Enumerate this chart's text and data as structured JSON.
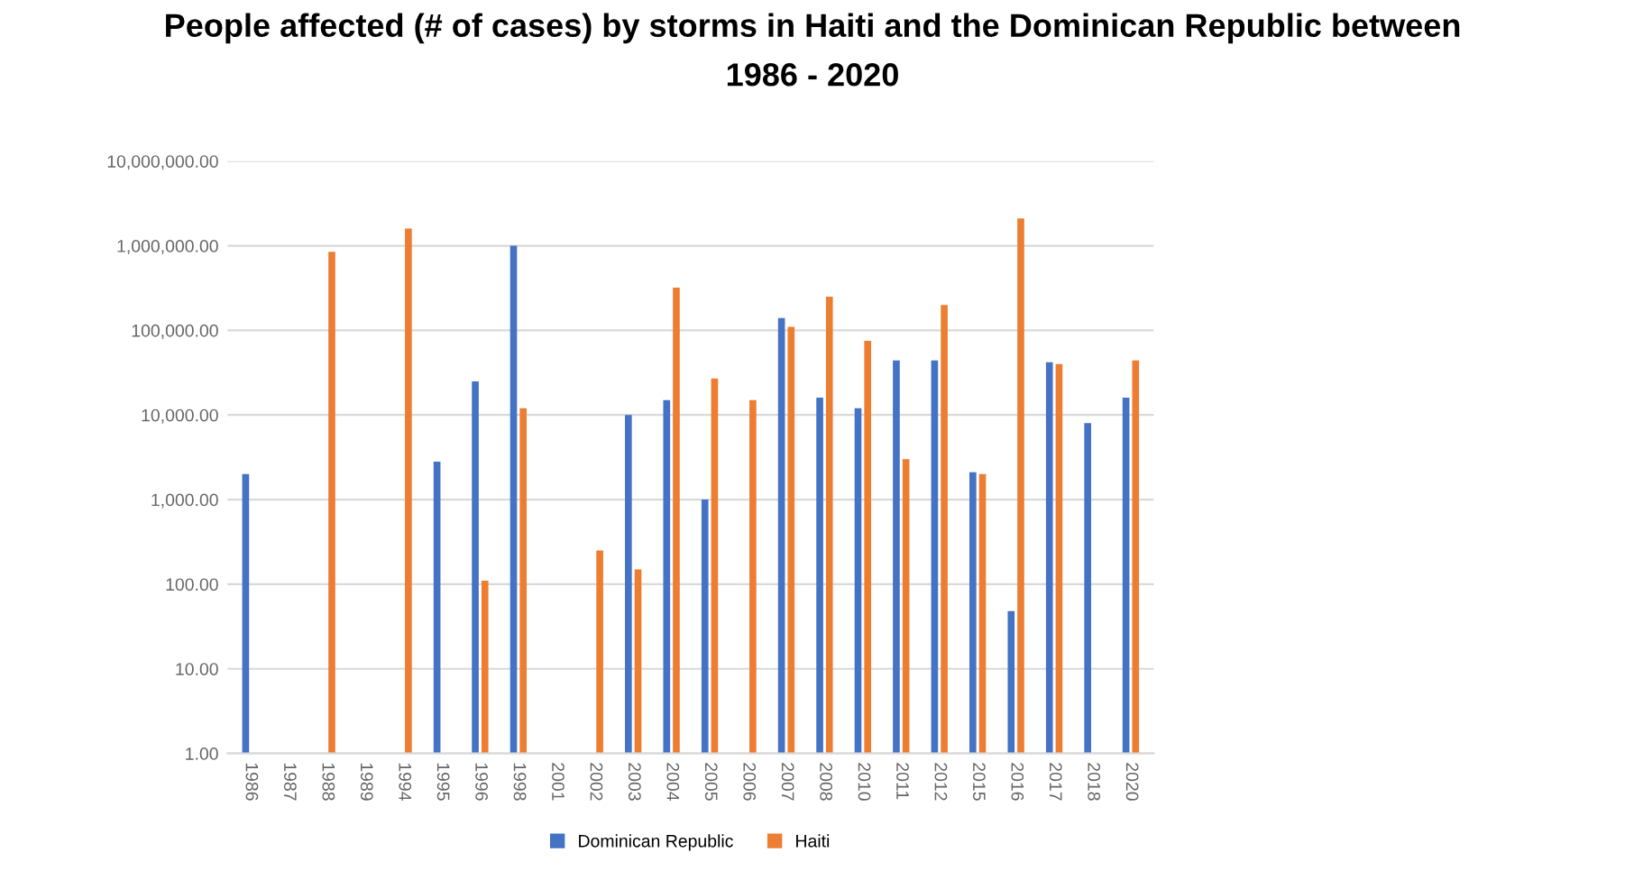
{
  "chart_data": {
    "type": "bar",
    "title": "People affected (# of cases) by storms in Haiti and the Dominican Republic between\n1986 - 2020",
    "categories": [
      "1986",
      "1987",
      "1988",
      "1989",
      "1994",
      "1995",
      "1996",
      "1998",
      "2001",
      "2002",
      "2003",
      "2004",
      "2005",
      "2006",
      "2007",
      "2008",
      "2010",
      "2011",
      "2012",
      "2015",
      "2016",
      "2017",
      "2018",
      "2020"
    ],
    "series": [
      {
        "name": "Dominican Republic",
        "color": "#4472c4",
        "values": [
          2000,
          null,
          null,
          null,
          null,
          2800,
          25000,
          1000000,
          null,
          null,
          10000,
          15000,
          1000,
          null,
          140000,
          16000,
          12000,
          44000,
          44000,
          2100,
          48,
          42000,
          8000,
          16000
        ]
      },
      {
        "name": "Haiti",
        "color": "#ed7d31",
        "values": [
          null,
          null,
          850000,
          null,
          1600000,
          null,
          110,
          12000,
          null,
          250,
          150,
          320000,
          27000,
          15000,
          110000,
          250000,
          75000,
          3000,
          200000,
          2000,
          2100000,
          40000,
          null,
          44000
        ]
      }
    ],
    "log": "y",
    "ylim": [
      1,
      10000000
    ],
    "yticks": [
      {
        "value": 1,
        "label": "1.00"
      },
      {
        "value": 10,
        "label": "10.00"
      },
      {
        "value": 100,
        "label": "100.00"
      },
      {
        "value": 1000,
        "label": "1,000.00"
      },
      {
        "value": 10000,
        "label": "10,000.00"
      },
      {
        "value": 100000,
        "label": "100,000.00"
      },
      {
        "value": 1000000,
        "label": "1,000,000.00"
      },
      {
        "value": 10000000,
        "label": "10,000,000.00"
      }
    ],
    "grid": "y",
    "legend": "bottom"
  }
}
